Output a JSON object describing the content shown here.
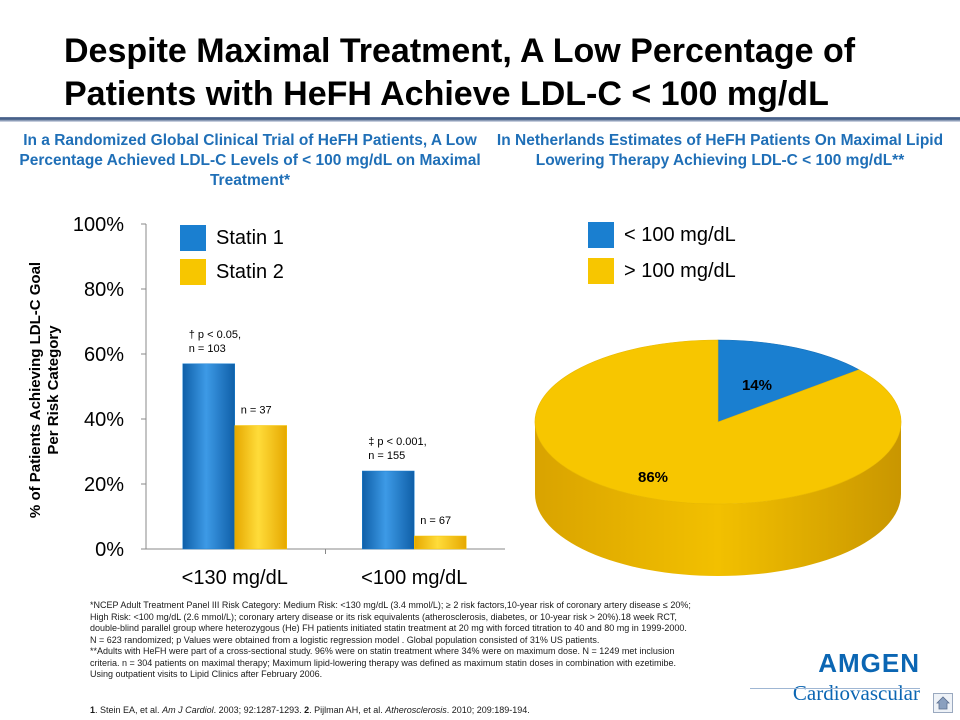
{
  "title": "Despite Maximal Treatment, A Low Percentage of Patients with HeFH Achieve LDL-C < 100 mg/dL",
  "left_subtitle": "In a Randomized Global Clinical Trial of HeFH Patients, A Low Percentage Achieved LDL-C Levels of < 100 mg/dL on Maximal Treatment*",
  "right_subtitle": "In Netherlands Estimates of HeFH Patients On Maximal Lipid Lowering Therapy Achieving LDL-C < 100 mg/dL**",
  "colors": {
    "blue": "#1a7fd0",
    "yellow": "#f7c600",
    "subhead": "#1f6fb7"
  },
  "chart_data": [
    {
      "type": "bar",
      "ylabel_line1": "% of Patients Achieving LDL-C Goal",
      "ylabel_line2": "Per Risk Category",
      "ylim": [
        0,
        100
      ],
      "yticks": [
        "0%",
        "20%",
        "40%",
        "60%",
        "80%",
        "100%"
      ],
      "categories": [
        "<130 mg/dL",
        "<100 mg/dL"
      ],
      "series": [
        {
          "name": "Statin 1",
          "values": [
            57,
            24
          ]
        },
        {
          "name": "Statin 2",
          "values": [
            38,
            4
          ]
        }
      ],
      "bar_labels": [
        [
          "† p < 0.05,",
          "n = 103"
        ],
        [
          "n = 37"
        ],
        [
          "‡ p < 0.001,",
          "n = 155"
        ],
        [
          "n = 67"
        ]
      ],
      "legend_position": "top-left"
    },
    {
      "type": "pie",
      "labels": [
        "< 100 mg/dL",
        "> 100 mg/dL"
      ],
      "values": [
        14,
        86
      ],
      "value_labels": [
        "14%",
        "86%"
      ],
      "legend_position": "top"
    }
  ],
  "footnotes": [
    "*NCEP Adult Treatment Panel III Risk Category: Medium Risk: <130 mg/dL (3.4 mmol/L); ≥ 2 risk factors,10-year risk of coronary artery disease ≤ 20%;",
    "High Risk: <100 mg/dL (2.6 mmol/L); coronary artery disease or its risk equivalents (atherosclerosis, diabetes, or 10-year risk > 20%).18 week RCT,",
    "double-blind parallel group where heterozygous (He) FH patients initiated statin treatment at 20 mg with forced titration to 40 and 80 mg in 1999-2000.",
    "N = 623 randomized; p Values were obtained from a logistic regression model . Global population consisted of 31% US patients.",
    "**Adults with HeFH were part of a cross-sectional study. 96% were on statin treatment where 34% were on maximum dose. N = 1249 met inclusion",
    "criteria. n = 304 patients on maximal therapy; Maximum lipid-lowering therapy was defined as maximum statin doses in combination with ezetimibe.",
    "Using outpatient visits to Lipid Clinics after February 2006."
  ],
  "references": {
    "n1": "1",
    "t1": ". Stein EA, et al. ",
    "j1": "Am J Cardiol",
    "t2": ". 2003; 92:1287-1293. ",
    "n2": "2",
    "t3": ". Pijlman AH, et al. ",
    "j2": "Atherosclerosis",
    "t4": ". 2010; 209:189-194."
  },
  "logo": {
    "word": "AMGEN",
    "sub": "Cardiovascular"
  }
}
